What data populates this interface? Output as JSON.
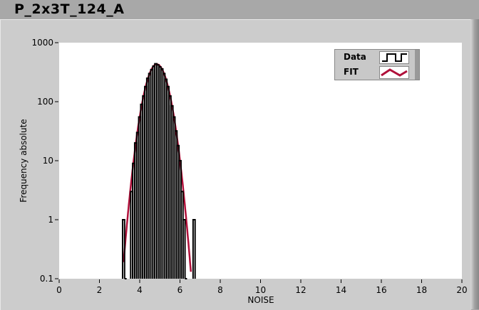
{
  "window": {
    "title": "P_2x3T_124_A"
  },
  "chart_data": {
    "type": "line",
    "title": "",
    "xlabel": "NOISE",
    "ylabel": "Frequency absolute",
    "xlim": [
      0,
      20
    ],
    "ylim": [
      0.1,
      1000
    ],
    "yscale": "log",
    "grid": false,
    "legend_placement": "top-right",
    "x_ticks": [
      "0",
      "2",
      "4",
      "6",
      "8",
      "10",
      "12",
      "14",
      "16",
      "18",
      "20"
    ],
    "y_ticks": [
      "0.1",
      "1",
      "10",
      "100",
      "1000"
    ],
    "series": [
      {
        "name": "Data",
        "style": "step",
        "color": "#000000",
        "x": [
          3.2,
          3.3,
          3.6,
          3.7,
          3.8,
          3.9,
          4.0,
          4.1,
          4.2,
          4.3,
          4.4,
          4.5,
          4.6,
          4.7,
          4.8,
          4.9,
          5.0,
          5.1,
          5.2,
          5.3,
          5.4,
          5.5,
          5.6,
          5.7,
          5.8,
          5.9,
          6.0,
          6.1,
          6.2,
          6.3,
          6.7
        ],
        "values": [
          1,
          0,
          3,
          9,
          20,
          30,
          55,
          90,
          125,
          180,
          250,
          300,
          350,
          400,
          440,
          420,
          390,
          360,
          300,
          240,
          180,
          125,
          85,
          55,
          32,
          18,
          10,
          3,
          1,
          0,
          1
        ]
      },
      {
        "name": "FIT",
        "style": "line",
        "color": "#b0103a",
        "mean": 4.85,
        "sigma": 0.42,
        "amplitude": 430
      }
    ]
  }
}
